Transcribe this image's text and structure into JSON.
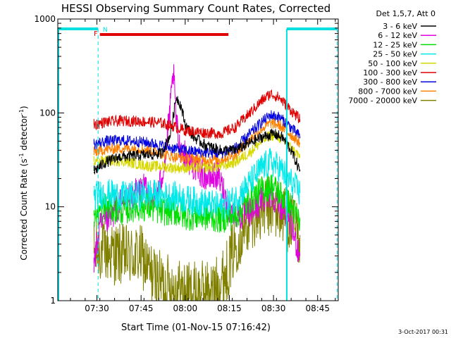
{
  "chart_data": {
    "type": "line",
    "title": "HESSI Observing Summary Count Rates, Corrected",
    "xlabel": "Start Time (01-Nov-15 07:16:42)",
    "ylabel_main": "Corrected Count Rate (s",
    "ylabel_sup1": "-1",
    "ylabel_mid": " detector",
    "ylabel_sup2": "-1",
    "ylabel_end": ")",
    "y_scale": "log",
    "ylim": [
      1,
      1000
    ],
    "xlim_min": [
      436.7,
      532
    ],
    "x_ticks": [
      {
        "t": 450,
        "label": "07:30"
      },
      {
        "t": 465,
        "label": "07:45"
      },
      {
        "t": 480,
        "label": "08:00"
      },
      {
        "t": 495,
        "label": "08:15"
      },
      {
        "t": 510,
        "label": "08:30"
      },
      {
        "t": 525,
        "label": "08:45"
      }
    ],
    "y_ticks": [
      {
        "v": 1,
        "label": "1"
      },
      {
        "v": 10,
        "label": "10"
      },
      {
        "v": 100,
        "label": "100"
      },
      {
        "v": 1000,
        "label": "1000"
      }
    ],
    "legend_header": "Det 1,5,7, Att 0",
    "legend_position": "right",
    "flags": {
      "F_label": "F",
      "N_label": "N",
      "flare": [
        451.0,
        494.7
      ],
      "night": [
        [
          436.7,
          450.4
        ],
        [
          514.5,
          531.6
        ]
      ]
    },
    "timestamp": "3-Oct-2017 00:31",
    "series": [
      {
        "name": "3 - 6 keV",
        "color": "#000000",
        "knots": [
          [
            449,
            24
          ],
          [
            453,
            30
          ],
          [
            458,
            34
          ],
          [
            463,
            35
          ],
          [
            468,
            36
          ],
          [
            472,
            37
          ],
          [
            475,
            60
          ],
          [
            477,
            150
          ],
          [
            478.5,
            120
          ],
          [
            480,
            75
          ],
          [
            483,
            55
          ],
          [
            487,
            45
          ],
          [
            492,
            40
          ],
          [
            497,
            40
          ],
          [
            502,
            48
          ],
          [
            506,
            55
          ],
          [
            510,
            60
          ],
          [
            513,
            55
          ],
          [
            516,
            40
          ],
          [
            519,
            24
          ]
        ]
      },
      {
        "name": "6 - 12 keV",
        "color": "#e000e0",
        "knots": [
          [
            449,
            2.5
          ],
          [
            451,
            6
          ],
          [
            455,
            8
          ],
          [
            458,
            11
          ],
          [
            461,
            12
          ],
          [
            463,
            14
          ],
          [
            466,
            16
          ],
          [
            468,
            12
          ],
          [
            471,
            15
          ],
          [
            473,
            30
          ],
          [
            475,
            120
          ],
          [
            476,
            270
          ],
          [
            477,
            80
          ],
          [
            478,
            45
          ],
          [
            480,
            35
          ],
          [
            484,
            25
          ],
          [
            488,
            20
          ],
          [
            491,
            22
          ],
          [
            493,
            15
          ],
          [
            495,
            9
          ],
          [
            499,
            8
          ],
          [
            503,
            9
          ],
          [
            506,
            12
          ],
          [
            509,
            14
          ],
          [
            512,
            11
          ],
          [
            515,
            8
          ],
          [
            519,
            3
          ]
        ]
      },
      {
        "name": "12 - 25 keV",
        "color": "#00e000",
        "knots": [
          [
            449,
            8
          ],
          [
            453,
            10
          ],
          [
            458,
            9
          ],
          [
            463,
            10
          ],
          [
            468,
            10
          ],
          [
            472,
            9
          ],
          [
            476,
            9
          ],
          [
            480,
            8
          ],
          [
            486,
            8
          ],
          [
            492,
            7.5
          ],
          [
            497,
            8
          ],
          [
            502,
            12
          ],
          [
            506,
            15
          ],
          [
            509,
            17
          ],
          [
            512,
            14
          ],
          [
            515,
            11
          ],
          [
            519,
            7
          ]
        ]
      },
      {
        "name": "25 - 50 keV",
        "color": "#00e8e8",
        "knots": [
          [
            449,
            13
          ],
          [
            453,
            14
          ],
          [
            458,
            13
          ],
          [
            463,
            13
          ],
          [
            468,
            14
          ],
          [
            472,
            13
          ],
          [
            476,
            13
          ],
          [
            480,
            12
          ],
          [
            486,
            11
          ],
          [
            492,
            10
          ],
          [
            497,
            12
          ],
          [
            502,
            18
          ],
          [
            506,
            26
          ],
          [
            509,
            30
          ],
          [
            512,
            26
          ],
          [
            515,
            20
          ],
          [
            519,
            14
          ]
        ]
      },
      {
        "name": "50 - 100 keV",
        "color": "#d8d800",
        "knots": [
          [
            449,
            30
          ],
          [
            453,
            31
          ],
          [
            458,
            31
          ],
          [
            463,
            29
          ],
          [
            468,
            27
          ],
          [
            472,
            27
          ],
          [
            476,
            26
          ],
          [
            480,
            26
          ],
          [
            486,
            26
          ],
          [
            492,
            27
          ],
          [
            497,
            30
          ],
          [
            502,
            38
          ],
          [
            506,
            50
          ],
          [
            509,
            58
          ],
          [
            512,
            55
          ],
          [
            515,
            45
          ],
          [
            519,
            34
          ]
        ]
      },
      {
        "name": "100 - 300 keV",
        "color": "#e00000",
        "knots": [
          [
            449,
            75
          ],
          [
            453,
            80
          ],
          [
            458,
            82
          ],
          [
            463,
            82
          ],
          [
            468,
            80
          ],
          [
            472,
            78
          ],
          [
            476,
            72
          ],
          [
            480,
            65
          ],
          [
            486,
            62
          ],
          [
            492,
            60
          ],
          [
            497,
            70
          ],
          [
            502,
            100
          ],
          [
            506,
            135
          ],
          [
            509,
            160
          ],
          [
            512,
            145
          ],
          [
            515,
            115
          ],
          [
            519,
            85
          ]
        ]
      },
      {
        "name": "300 - 800 keV",
        "color": "#0000e0",
        "knots": [
          [
            449,
            46
          ],
          [
            453,
            50
          ],
          [
            458,
            51
          ],
          [
            463,
            50
          ],
          [
            468,
            48
          ],
          [
            472,
            45
          ],
          [
            476,
            42
          ],
          [
            480,
            40
          ],
          [
            486,
            38
          ],
          [
            492,
            37
          ],
          [
            497,
            42
          ],
          [
            502,
            60
          ],
          [
            506,
            80
          ],
          [
            509,
            95
          ],
          [
            512,
            90
          ],
          [
            515,
            75
          ],
          [
            519,
            56
          ]
        ]
      },
      {
        "name": "800 - 7000 keV",
        "color": "#ff8000",
        "knots": [
          [
            449,
            38
          ],
          [
            453,
            41
          ],
          [
            458,
            42
          ],
          [
            463,
            42
          ],
          [
            468,
            40
          ],
          [
            472,
            37
          ],
          [
            476,
            34
          ],
          [
            480,
            33
          ],
          [
            486,
            32
          ],
          [
            492,
            32
          ],
          [
            497,
            36
          ],
          [
            502,
            52
          ],
          [
            506,
            68
          ],
          [
            509,
            78
          ],
          [
            512,
            74
          ],
          [
            515,
            62
          ],
          [
            519,
            48
          ]
        ]
      },
      {
        "name": "7000 - 20000 keV",
        "color": "#808000",
        "knots": [
          [
            449,
            3.2
          ],
          [
            451,
            3.5
          ],
          [
            455,
            3.2
          ],
          [
            460,
            3.0
          ],
          [
            465,
            3.0
          ],
          [
            468,
            2.0
          ],
          [
            471,
            1.6
          ],
          [
            474,
            1.5
          ],
          [
            478,
            1.3
          ],
          [
            482,
            1.2
          ],
          [
            486,
            1.25
          ],
          [
            490,
            1.3
          ],
          [
            494,
            2.0
          ],
          [
            497,
            4
          ],
          [
            500,
            6
          ],
          [
            503,
            8
          ],
          [
            506,
            9.5
          ],
          [
            509,
            10
          ],
          [
            512,
            9
          ],
          [
            515,
            7
          ],
          [
            519,
            5
          ]
        ]
      }
    ]
  }
}
